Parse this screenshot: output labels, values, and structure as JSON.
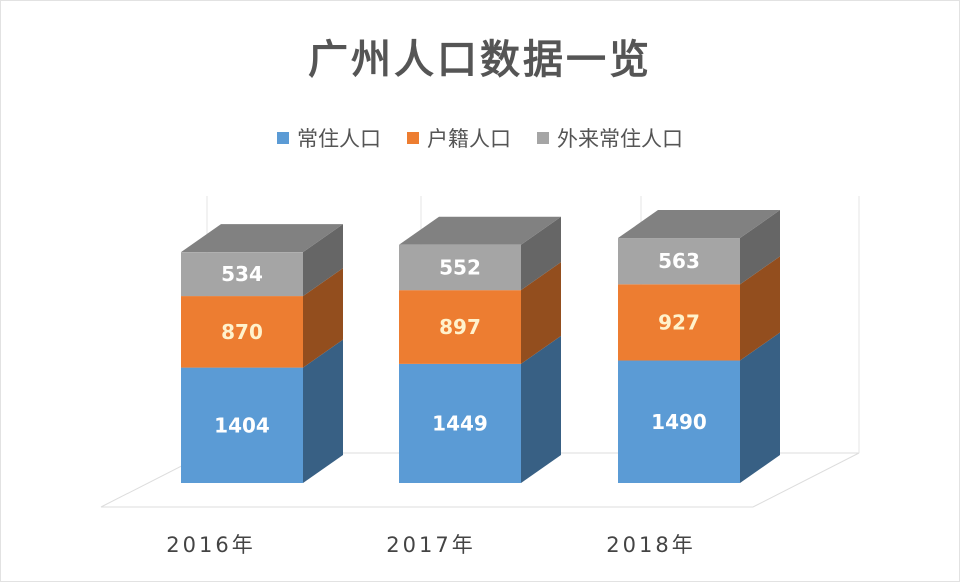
{
  "chart_data": {
    "type": "bar",
    "stacked": true,
    "title": "广州人口数据一览",
    "categories": [
      "2016年",
      "2017年",
      "2018年"
    ],
    "series": [
      {
        "name": "常住人口",
        "values": [
          1404,
          1449,
          1490
        ],
        "color": "#5b9bd5"
      },
      {
        "name": "户籍人口",
        "values": [
          870,
          897,
          927
        ],
        "color": "#ed7d31"
      },
      {
        "name": "外来常住人口",
        "values": [
          534,
          552,
          563
        ],
        "color": "#a5a5a5"
      }
    ],
    "legend_position": "top",
    "xlabel": "",
    "ylabel": ""
  }
}
